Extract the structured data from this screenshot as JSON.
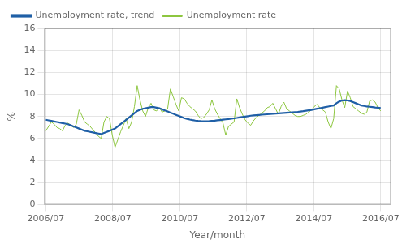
{
  "chart_data": {
    "type": "line",
    "xlabel": "Year/month",
    "ylabel": "%",
    "x": [
      2006.583,
      2006.6656,
      2006.7483,
      2006.8309,
      2006.9136,
      2006.9962,
      2007.0789,
      2007.1615,
      2007.2442,
      2007.3268,
      2007.4094,
      2007.4921,
      2007.5747,
      2007.6574,
      2007.74,
      2007.8227,
      2007.9053,
      2007.988,
      2008.0706,
      2008.1532,
      2008.2359,
      2008.3185,
      2008.4012,
      2008.4838,
      2008.5665,
      2008.6491,
      2008.7318,
      2008.8144,
      2008.897,
      2008.9797,
      2009.0623,
      2009.145,
      2009.2276,
      2009.3103,
      2009.3929,
      2009.4756,
      2009.5582,
      2009.6409,
      2009.7235,
      2009.8061,
      2009.8888,
      2009.9714,
      2010.0541,
      2010.1367,
      2010.2194,
      2010.302,
      2010.3847,
      2010.4673,
      2010.5499,
      2010.6326,
      2010.7152,
      2010.7979,
      2010.8805,
      2010.9632,
      2011.0458,
      2011.1285,
      2011.2111,
      2011.2937,
      2011.3764,
      2011.459,
      2011.5417,
      2011.6243,
      2011.707,
      2011.7896,
      2011.8723,
      2011.9549,
      2012.0375,
      2012.1202,
      2012.2028,
      2012.2855,
      2012.3681,
      2012.4508,
      2012.5334,
      2012.6161,
      2012.6987,
      2012.7813,
      2012.864,
      2012.9466,
      2013.0293,
      2013.1119,
      2013.1946,
      2013.2772,
      2013.3599,
      2013.4425,
      2013.5251,
      2013.6078,
      2013.6904,
      2013.7731,
      2013.8557,
      2013.9384,
      2014.021,
      2014.1037,
      2014.1863,
      2014.269,
      2014.3516,
      2014.4342,
      2014.5169,
      2014.5995,
      2014.6822,
      2014.7648,
      2014.8475,
      2014.9301,
      2015.0128,
      2015.0954,
      2015.178,
      2015.2607,
      2015.3433,
      2015.426,
      2015.5086,
      2015.5913,
      2015.6739,
      2015.7566,
      2015.8392,
      2015.9218,
      2016.0045,
      2016.0871,
      2016.1698,
      2016.2524,
      2016.3351,
      2016.4177,
      2016.5004,
      2016.583
    ],
    "series": [
      {
        "name": "Unemployment rate",
        "color": "#8dc63f",
        "values": [
          6.7,
          7.1,
          7.5,
          7.3,
          7.0,
          6.9,
          6.7,
          7.2,
          7.4,
          7.2,
          7.0,
          7.3,
          8.6,
          8.1,
          7.5,
          7.3,
          7.1,
          6.8,
          6.5,
          6.2,
          6.0,
          7.5,
          8.0,
          7.8,
          6.3,
          5.2,
          5.9,
          6.6,
          7.2,
          7.8,
          6.9,
          7.5,
          8.9,
          10.8,
          9.5,
          8.5,
          8.0,
          8.8,
          9.2,
          8.6,
          8.5,
          8.8,
          8.4,
          8.5,
          8.7,
          10.5,
          9.8,
          9.1,
          8.5,
          9.7,
          9.6,
          9.2,
          8.9,
          8.7,
          8.5,
          8.1,
          7.8,
          7.9,
          8.2,
          8.6,
          9.5,
          8.7,
          8.2,
          7.8,
          7.4,
          6.3,
          7.1,
          7.3,
          7.5,
          9.6,
          8.8,
          8.2,
          7.7,
          7.4,
          7.2,
          7.6,
          7.9,
          8.1,
          8.3,
          8.5,
          8.8,
          8.9,
          9.2,
          8.7,
          8.2,
          8.9,
          9.3,
          8.7,
          8.5,
          8.3,
          8.1,
          8.0,
          8.0,
          8.1,
          8.2,
          8.4,
          8.6,
          8.9,
          9.1,
          8.8,
          8.6,
          8.4,
          7.5,
          6.9,
          7.8,
          10.8,
          10.5,
          9.5,
          8.8,
          10.3,
          9.7,
          8.9,
          8.7,
          8.5,
          8.3,
          8.2,
          8.4,
          9.4,
          9.5,
          9.3,
          8.8,
          8.5
        ]
      },
      {
        "name": "Unemployment rate, trend",
        "color": "#1f5fa6",
        "values": [
          7.7,
          7.65,
          7.6,
          7.55,
          7.5,
          7.45,
          7.4,
          7.35,
          7.3,
          7.2,
          7.1,
          7.0,
          6.9,
          6.8,
          6.7,
          6.65,
          6.6,
          6.55,
          6.5,
          6.45,
          6.4,
          6.5,
          6.6,
          6.7,
          6.8,
          6.9,
          7.1,
          7.3,
          7.5,
          7.7,
          7.9,
          8.1,
          8.3,
          8.5,
          8.6,
          8.7,
          8.75,
          8.8,
          8.85,
          8.85,
          8.8,
          8.75,
          8.65,
          8.55,
          8.45,
          8.35,
          8.25,
          8.15,
          8.05,
          7.95,
          7.85,
          7.78,
          7.72,
          7.67,
          7.63,
          7.6,
          7.58,
          7.57,
          7.57,
          7.58,
          7.6,
          7.62,
          7.65,
          7.68,
          7.71,
          7.74,
          7.77,
          7.8,
          7.83,
          7.87,
          7.91,
          7.95,
          7.99,
          8.03,
          8.07,
          8.1,
          8.12,
          8.14,
          8.16,
          8.18,
          8.2,
          8.22,
          8.24,
          8.26,
          8.28,
          8.3,
          8.32,
          8.34,
          8.36,
          8.38,
          8.4,
          8.42,
          8.45,
          8.48,
          8.52,
          8.56,
          8.6,
          8.65,
          8.7,
          8.75,
          8.8,
          8.85,
          8.9,
          8.95,
          9.0,
          9.2,
          9.35,
          9.45,
          9.48,
          9.45,
          9.4,
          9.3,
          9.2,
          9.1,
          9.0,
          8.95,
          8.9,
          8.88,
          8.85,
          8.82,
          8.8,
          8.77
        ]
      }
    ],
    "xlim": [
      2006.533,
      2016.883
    ],
    "xticks": [
      {
        "value": 2006.583,
        "label": "2006/07"
      },
      {
        "value": 2008.583,
        "label": "2008/07"
      },
      {
        "value": 2010.583,
        "label": "2010/07"
      },
      {
        "value": 2012.583,
        "label": "2012/07"
      },
      {
        "value": 2014.583,
        "label": "2014/07"
      },
      {
        "value": 2016.583,
        "label": "2016/07"
      }
    ],
    "ylim": [
      0,
      16
    ],
    "yticks": [
      0,
      2,
      4,
      6,
      8,
      10,
      12,
      14,
      16
    ],
    "grid": true,
    "legend": "top"
  }
}
